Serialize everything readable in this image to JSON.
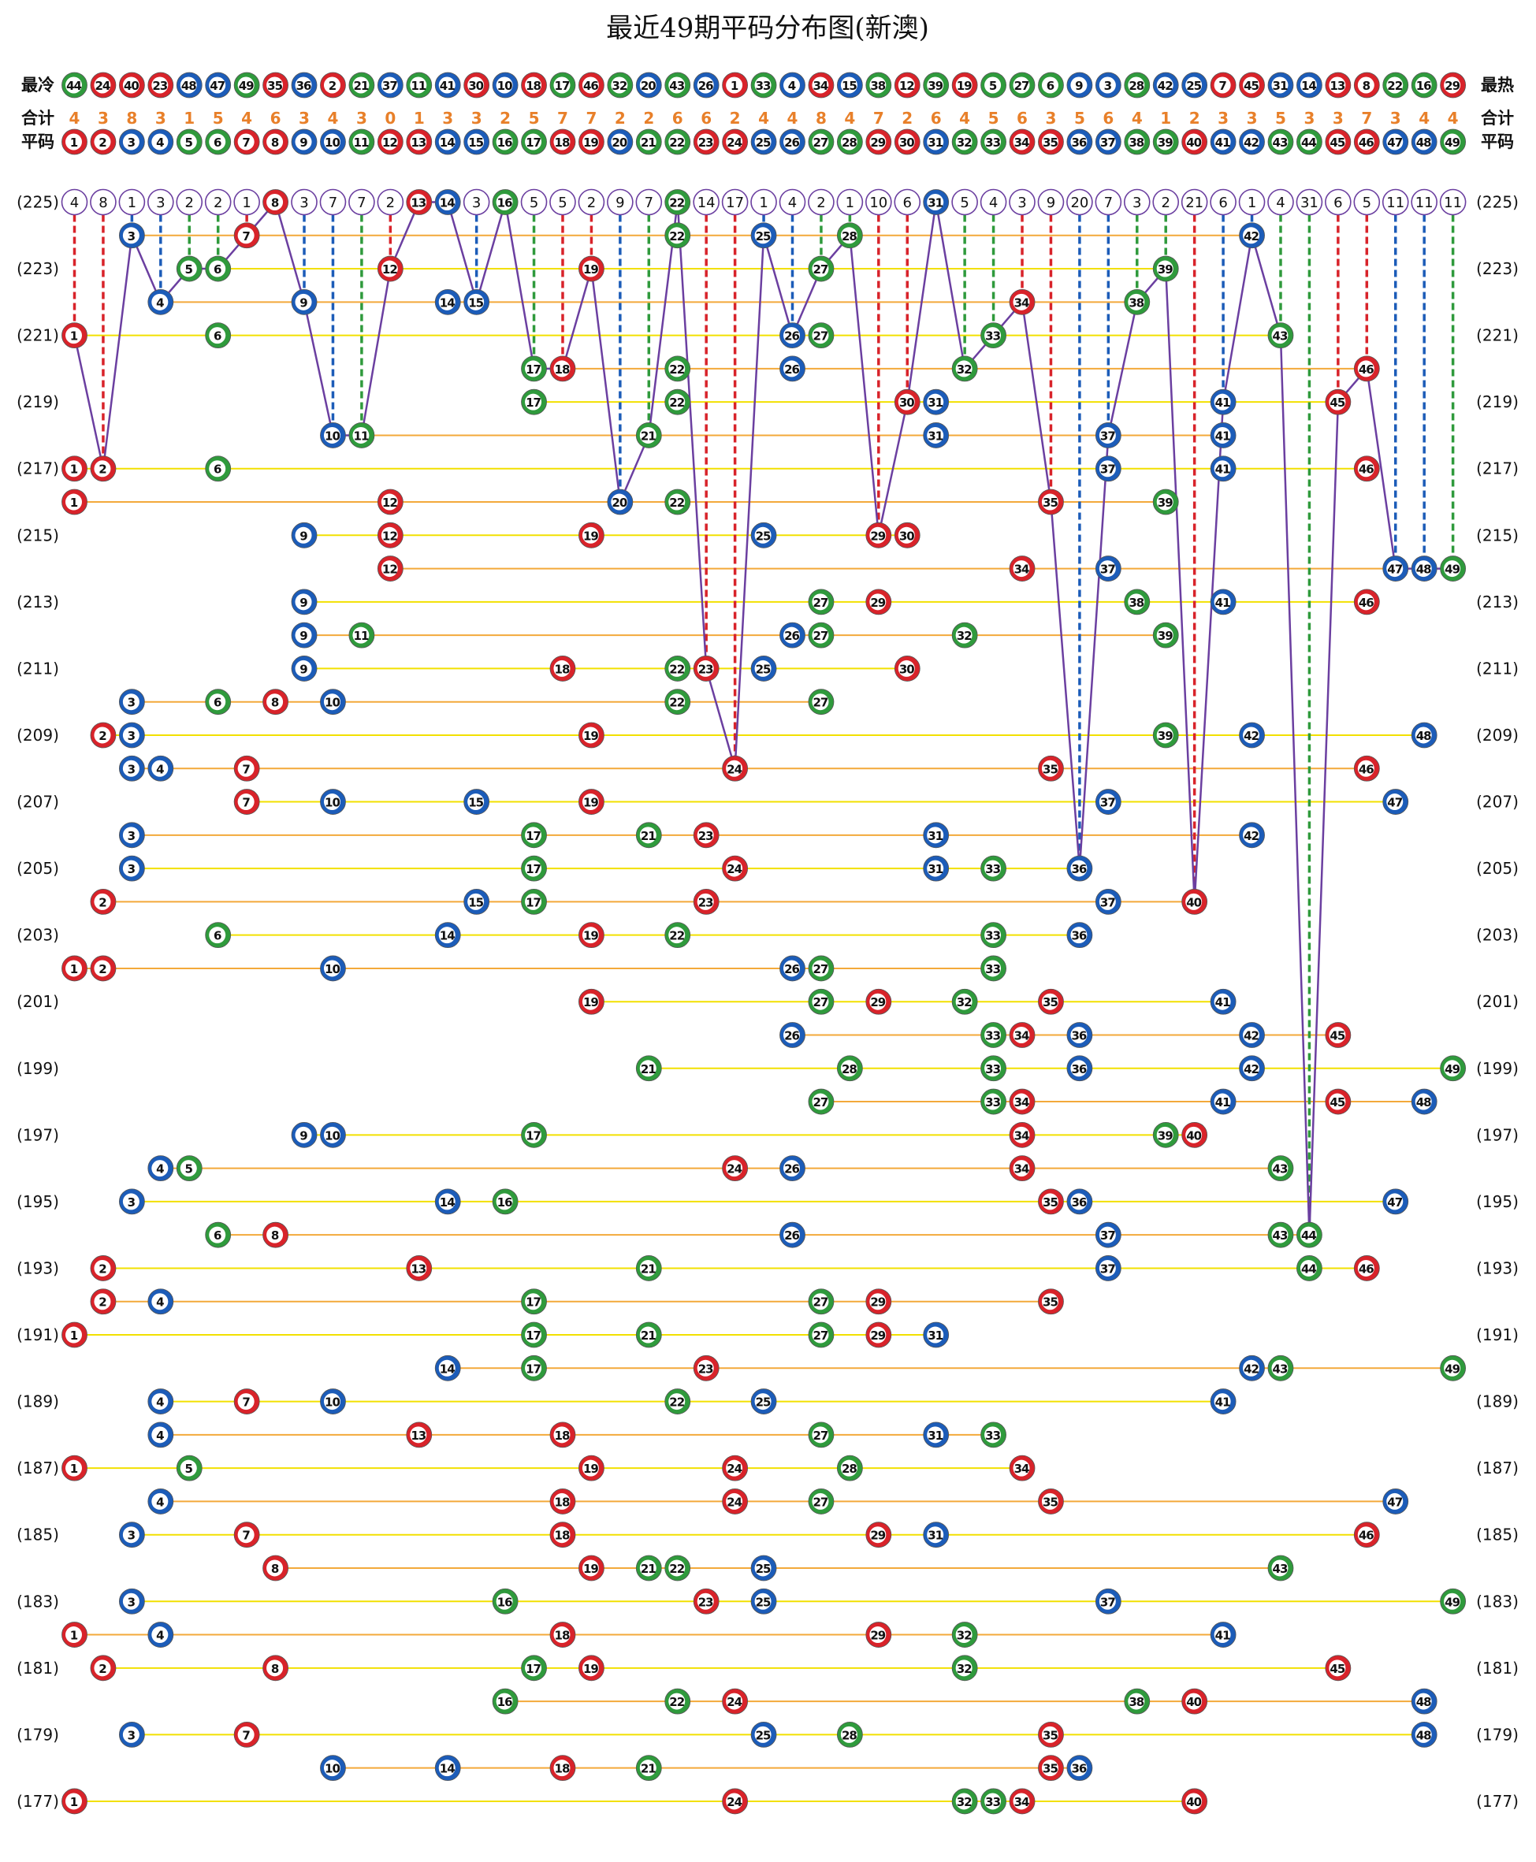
{
  "chart_data": {
    "type": "lottery-distribution",
    "title": "最近49期平码分布图(新澳)",
    "cold_label": "最冷",
    "hot_label": "最热",
    "count_label": "合计",
    "number_label": "平码",
    "cold_order": [
      44,
      24,
      40,
      23,
      48,
      47,
      49,
      35,
      36,
      2,
      21,
      37,
      11,
      41,
      30,
      10,
      18,
      17,
      46,
      32,
      20,
      43,
      26,
      1,
      33,
      4,
      34,
      15,
      38,
      12,
      39,
      19,
      5,
      27,
      6,
      9,
      3,
      28,
      42,
      25,
      7,
      45,
      31,
      14,
      13,
      8,
      22,
      16,
      29
    ],
    "counts": [
      4,
      3,
      8,
      3,
      1,
      5,
      4,
      6,
      3,
      4,
      3,
      0,
      1,
      3,
      3,
      2,
      5,
      7,
      7,
      2,
      2,
      6,
      6,
      2,
      4,
      4,
      8,
      4,
      7,
      2,
      6,
      4,
      5,
      6,
      3,
      5,
      6,
      4,
      1,
      2,
      3,
      3,
      5,
      3,
      3,
      7,
      3,
      4,
      4
    ],
    "numbers": [
      1,
      2,
      3,
      4,
      5,
      6,
      7,
      8,
      9,
      10,
      11,
      12,
      13,
      14,
      15,
      16,
      17,
      18,
      19,
      20,
      21,
      22,
      23,
      24,
      25,
      26,
      27,
      28,
      29,
      30,
      31,
      32,
      33,
      34,
      35,
      36,
      37,
      38,
      39,
      40,
      41,
      42,
      43,
      44,
      45,
      46,
      47,
      48,
      49
    ],
    "palette": {
      "red": "#d8232a",
      "blue": "#1c5cb8",
      "green": "#2f9a3c"
    },
    "number_colors": [
      "red",
      "red",
      "blue",
      "blue",
      "green",
      "green",
      "red",
      "red",
      "blue",
      "blue",
      "green",
      "red",
      "red",
      "blue",
      "blue",
      "green",
      "green",
      "red",
      "red",
      "blue",
      "green",
      "green",
      "red",
      "red",
      "blue",
      "blue",
      "green",
      "green",
      "red",
      "red",
      "blue",
      "green",
      "green",
      "red",
      "red",
      "blue",
      "blue",
      "green",
      "green",
      "red",
      "blue",
      "blue",
      "green",
      "green",
      "red",
      "red",
      "blue",
      "blue",
      "green"
    ],
    "miss": [
      4,
      8,
      1,
      3,
      2,
      2,
      1,
      0,
      3,
      7,
      7,
      2,
      0,
      0,
      3,
      0,
      5,
      5,
      2,
      9,
      7,
      0,
      14,
      17,
      1,
      4,
      2,
      1,
      10,
      6,
      0,
      5,
      4,
      3,
      9,
      20,
      7,
      3,
      2,
      21,
      6,
      1,
      4,
      31,
      6,
      5,
      11,
      11,
      11
    ],
    "count_color": "#e8802a",
    "link_color": "#6b3fa0",
    "row_line_colors": [
      "#f2e000",
      "#f3a93a"
    ],
    "rows": [
      {
        "label": "(225)",
        "numbers": [
          8,
          13,
          14,
          16,
          22,
          31
        ]
      },
      {
        "label": null,
        "numbers": [
          3,
          7,
          22,
          25,
          28,
          42
        ]
      },
      {
        "label": "(223)",
        "numbers": [
          5,
          6,
          12,
          19,
          27,
          39
        ]
      },
      {
        "label": null,
        "numbers": [
          4,
          9,
          14,
          15,
          34,
          38
        ]
      },
      {
        "label": "(221)",
        "numbers": [
          1,
          6,
          26,
          27,
          33,
          43
        ]
      },
      {
        "label": null,
        "numbers": [
          17,
          18,
          22,
          26,
          32,
          46
        ]
      },
      {
        "label": "(219)",
        "numbers": [
          17,
          22,
          30,
          31,
          41,
          45
        ]
      },
      {
        "label": null,
        "numbers": [
          10,
          11,
          21,
          31,
          37,
          41
        ]
      },
      {
        "label": "(217)",
        "numbers": [
          1,
          2,
          6,
          37,
          41,
          46
        ]
      },
      {
        "label": null,
        "numbers": [
          1,
          12,
          20,
          22,
          35,
          39
        ]
      },
      {
        "label": "(215)",
        "numbers": [
          9,
          12,
          19,
          25,
          29,
          30
        ]
      },
      {
        "label": null,
        "numbers": [
          12,
          34,
          37,
          47,
          48,
          49
        ]
      },
      {
        "label": "(213)",
        "numbers": [
          9,
          27,
          29,
          38,
          41,
          46
        ]
      },
      {
        "label": null,
        "numbers": [
          9,
          11,
          26,
          27,
          32,
          39
        ]
      },
      {
        "label": "(211)",
        "numbers": [
          9,
          18,
          22,
          23,
          25,
          30
        ]
      },
      {
        "label": null,
        "numbers": [
          3,
          6,
          8,
          10,
          22,
          27
        ]
      },
      {
        "label": "(209)",
        "numbers": [
          2,
          3,
          19,
          39,
          42,
          48
        ]
      },
      {
        "label": null,
        "numbers": [
          3,
          4,
          7,
          24,
          35,
          46
        ]
      },
      {
        "label": "(207)",
        "numbers": [
          7,
          10,
          15,
          19,
          37,
          47
        ]
      },
      {
        "label": null,
        "numbers": [
          3,
          17,
          21,
          23,
          31,
          42
        ]
      },
      {
        "label": "(205)",
        "numbers": [
          3,
          17,
          24,
          31,
          33,
          36
        ]
      },
      {
        "label": null,
        "numbers": [
          2,
          15,
          17,
          23,
          37,
          40
        ]
      },
      {
        "label": "(203)",
        "numbers": [
          6,
          14,
          19,
          22,
          33,
          36
        ]
      },
      {
        "label": null,
        "numbers": [
          1,
          2,
          10,
          26,
          27,
          33
        ]
      },
      {
        "label": "(201)",
        "numbers": [
          19,
          27,
          29,
          32,
          35,
          41
        ]
      },
      {
        "label": null,
        "numbers": [
          26,
          33,
          34,
          36,
          42,
          45
        ]
      },
      {
        "label": "(199)",
        "numbers": [
          21,
          28,
          33,
          36,
          42,
          49
        ]
      },
      {
        "label": null,
        "numbers": [
          27,
          33,
          34,
          41,
          45,
          48
        ]
      },
      {
        "label": "(197)",
        "numbers": [
          9,
          10,
          17,
          34,
          39,
          40
        ]
      },
      {
        "label": null,
        "numbers": [
          4,
          5,
          24,
          26,
          34,
          43
        ]
      },
      {
        "label": "(195)",
        "numbers": [
          3,
          14,
          16,
          35,
          36,
          47
        ]
      },
      {
        "label": null,
        "numbers": [
          6,
          8,
          26,
          37,
          43,
          44
        ]
      },
      {
        "label": "(193)",
        "numbers": [
          2,
          13,
          21,
          37,
          44,
          46
        ]
      },
      {
        "label": null,
        "numbers": [
          2,
          4,
          17,
          27,
          29,
          35
        ]
      },
      {
        "label": "(191)",
        "numbers": [
          1,
          17,
          21,
          27,
          29,
          31
        ]
      },
      {
        "label": null,
        "numbers": [
          14,
          17,
          23,
          42,
          43,
          49
        ]
      },
      {
        "label": "(189)",
        "numbers": [
          4,
          7,
          10,
          22,
          25,
          41
        ]
      },
      {
        "label": null,
        "numbers": [
          4,
          13,
          18,
          27,
          31,
          33
        ]
      },
      {
        "label": "(187)",
        "numbers": [
          1,
          5,
          19,
          24,
          28,
          34
        ]
      },
      {
        "label": null,
        "numbers": [
          4,
          18,
          24,
          27,
          35,
          47
        ]
      },
      {
        "label": "(185)",
        "numbers": [
          3,
          7,
          18,
          29,
          31,
          46
        ]
      },
      {
        "label": null,
        "numbers": [
          8,
          19,
          21,
          22,
          25,
          43
        ]
      },
      {
        "label": "(183)",
        "numbers": [
          3,
          16,
          23,
          25,
          37,
          49
        ]
      },
      {
        "label": null,
        "numbers": [
          1,
          4,
          18,
          29,
          32,
          41
        ]
      },
      {
        "label": "(181)",
        "numbers": [
          2,
          8,
          17,
          19,
          32,
          45
        ]
      },
      {
        "label": null,
        "numbers": [
          16,
          22,
          24,
          38,
          40,
          48
        ]
      },
      {
        "label": "(179)",
        "numbers": [
          3,
          7,
          25,
          28,
          35,
          48
        ]
      },
      {
        "label": null,
        "numbers": [
          10,
          14,
          18,
          21,
          35,
          36
        ]
      },
      {
        "label": "(177)",
        "numbers": [
          1,
          24,
          32,
          33,
          34,
          40
        ]
      }
    ]
  }
}
